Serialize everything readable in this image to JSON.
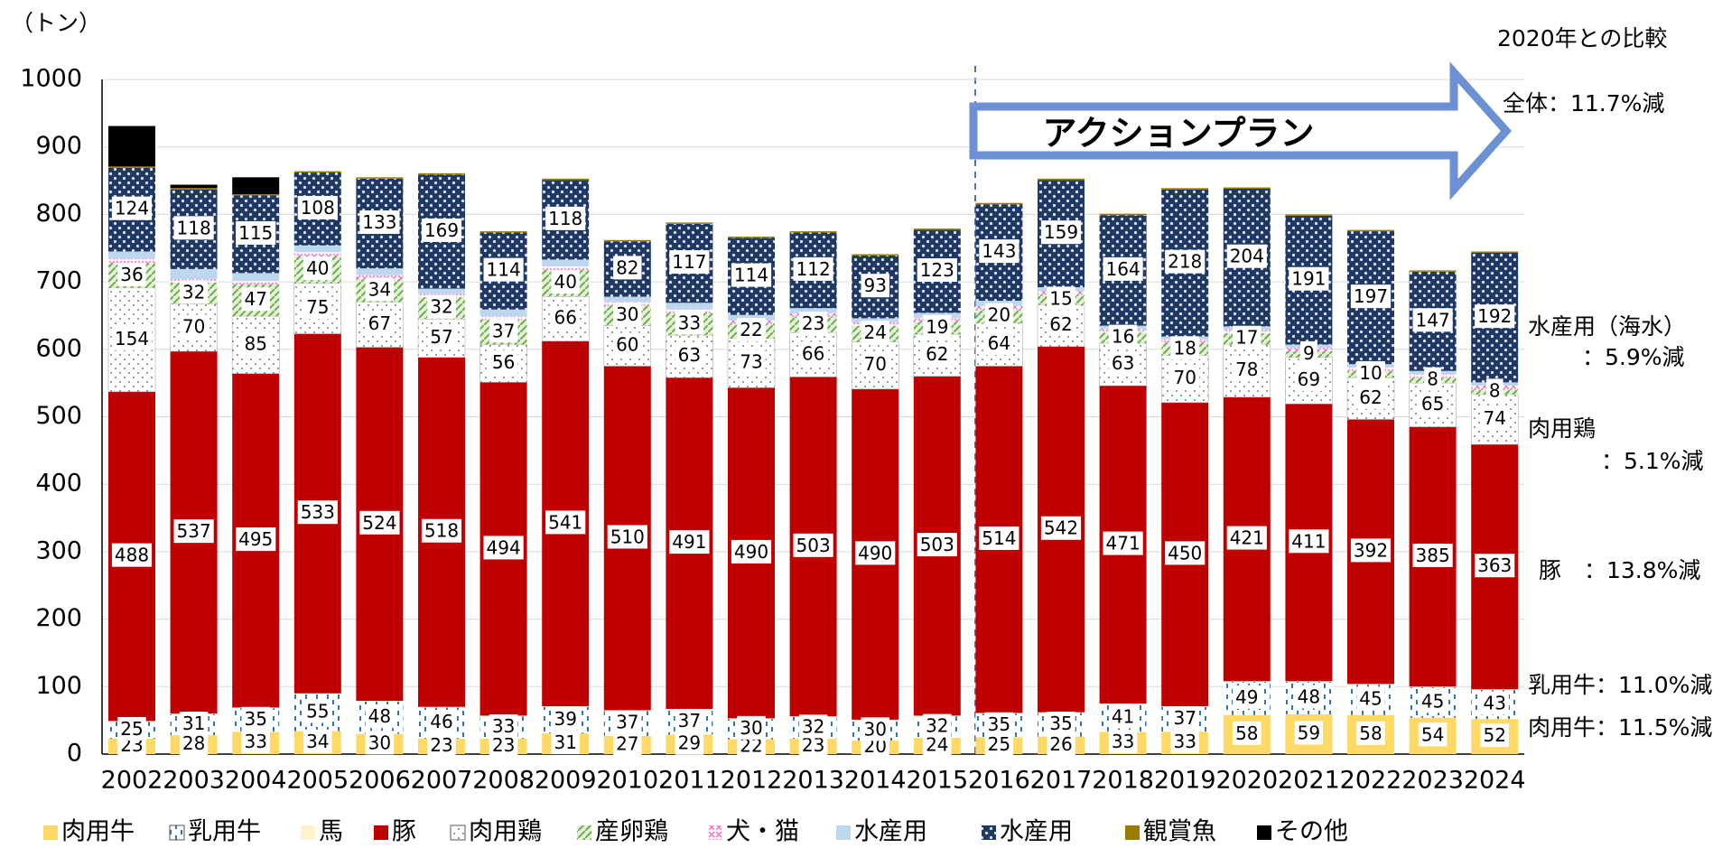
{
  "chart_data": {
    "type": "stacked_bar",
    "y_axis_label": "（トン）",
    "annotations": {
      "compare_title": "2020年との比較",
      "total": "全体：11.7%減",
      "action_plan": "アクションプラン",
      "sea_1": "水産用（海水）",
      "sea_2": "：5.9%減",
      "broiler_1": "肉用鶏",
      "broiler_2": "：5.1%減",
      "pig": "豚　：13.8%減",
      "dairy": "乳用牛：11.0%減",
      "beef": "肉用牛：11.5%減"
    },
    "categories": [
      "2002",
      "2003",
      "2004",
      "2005",
      "2006",
      "2007",
      "2008",
      "2009",
      "2010",
      "2011",
      "2012",
      "2013",
      "2014",
      "2015",
      "2016",
      "2017",
      "2018",
      "2019",
      "2020",
      "2021",
      "2022",
      "2023",
      "2024"
    ],
    "ylim": [
      0,
      1000
    ],
    "yticks": [
      0,
      100,
      200,
      300,
      400,
      500,
      600,
      700,
      800,
      900,
      1000
    ],
    "series": [
      {
        "name": "肉用牛",
        "color": "#ffd966",
        "show_labels": true,
        "values": [
          23,
          28,
          33,
          34,
          30,
          23,
          23,
          31,
          27,
          29,
          22,
          23,
          20,
          24,
          25,
          26,
          33,
          33,
          58,
          59,
          58,
          54,
          52
        ]
      },
      {
        "name": "乳用牛",
        "color": "#2e75b6",
        "show_labels": true,
        "values": [
          25,
          31,
          35,
          55,
          48,
          46,
          33,
          39,
          37,
          37,
          30,
          32,
          30,
          32,
          35,
          35,
          41,
          37,
          49,
          48,
          45,
          45,
          43
        ]
      },
      {
        "name": "馬",
        "color": "#fff2cc",
        "show_labels": false,
        "values": [
          1,
          1,
          1,
          1,
          1,
          1,
          1,
          1,
          1,
          1,
          1,
          1,
          1,
          1,
          1,
          1,
          1,
          1,
          1,
          1,
          1,
          1,
          1
        ]
      },
      {
        "name": "豚",
        "color": "#c00000",
        "show_labels": true,
        "values": [
          488,
          537,
          495,
          533,
          524,
          518,
          494,
          541,
          510,
          491,
          490,
          503,
          490,
          503,
          514,
          542,
          471,
          450,
          421,
          411,
          392,
          385,
          363
        ]
      },
      {
        "name": "肉用鶏",
        "color": "#7f7f7f",
        "show_labels": true,
        "values": [
          154,
          70,
          85,
          75,
          67,
          57,
          56,
          66,
          60,
          63,
          73,
          66,
          70,
          62,
          64,
          62,
          63,
          70,
          78,
          69,
          62,
          65,
          74
        ]
      },
      {
        "name": "産卵鶏",
        "color": "#a9d18e",
        "show_labels": true,
        "values": [
          36,
          32,
          47,
          40,
          34,
          32,
          37,
          40,
          30,
          33,
          22,
          23,
          24,
          19,
          20,
          15,
          16,
          18,
          17,
          9,
          10,
          8,
          8
        ]
      },
      {
        "name": "犬・猫",
        "color": "#ff66cc",
        "show_labels": false,
        "values": [
          8,
          5,
          5,
          6,
          6,
          5,
          5,
          5,
          5,
          5,
          5,
          5,
          5,
          5,
          5,
          5,
          5,
          5,
          5,
          5,
          5,
          5,
          5
        ]
      },
      {
        "name": "水産用",
        "color": "#bdd7ee",
        "show_labels": false,
        "values": [
          10,
          15,
          12,
          10,
          10,
          8,
          10,
          10,
          8,
          10,
          8,
          8,
          6,
          8,
          8,
          6,
          5,
          5,
          5,
          5,
          5,
          5,
          5
        ]
      },
      {
        "name": "水産用",
        "color": "#203864",
        "show_labels": true,
        "values": [
          124,
          118,
          115,
          108,
          133,
          169,
          114,
          118,
          82,
          117,
          114,
          112,
          93,
          123,
          143,
          159,
          164,
          218,
          204,
          191,
          197,
          147,
          192
        ]
      },
      {
        "name": "観賞魚",
        "color": "#9c7c00",
        "show_labels": false,
        "values": [
          2,
          2,
          2,
          2,
          2,
          2,
          2,
          2,
          2,
          2,
          2,
          2,
          2,
          2,
          2,
          2,
          2,
          2,
          2,
          2,
          2,
          2,
          2
        ]
      },
      {
        "name": "その他",
        "color": "#000000",
        "show_labels": false,
        "values": [
          60,
          5,
          25,
          0,
          0,
          0,
          0,
          0,
          0,
          0,
          0,
          0,
          0,
          0,
          0,
          0,
          0,
          0,
          0,
          0,
          0,
          0,
          0
        ]
      }
    ]
  }
}
